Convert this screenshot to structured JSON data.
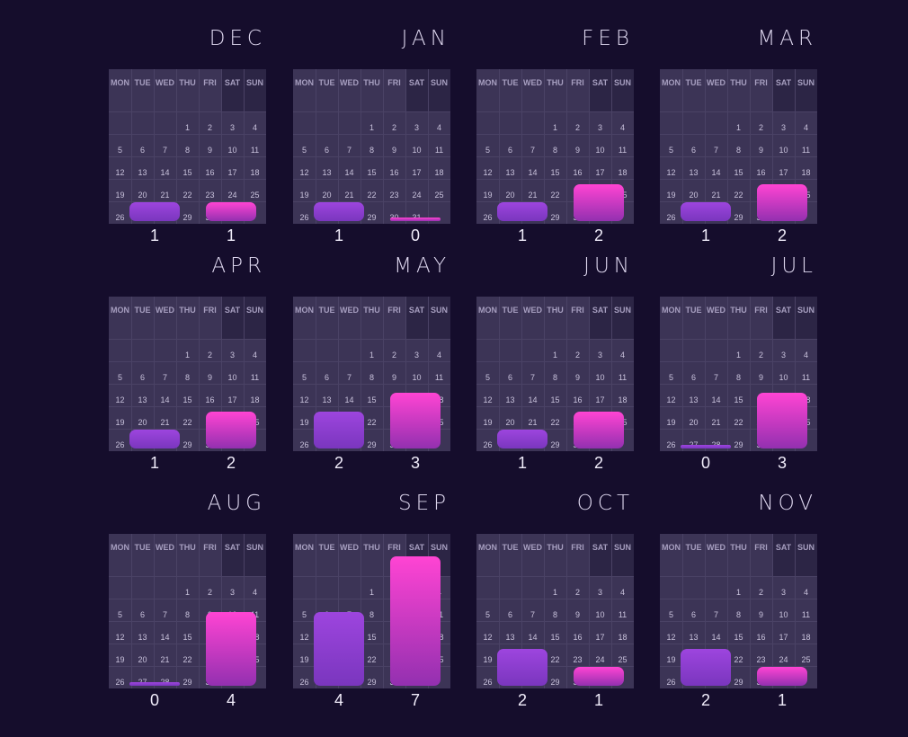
{
  "chart_data": {
    "type": "bar",
    "weekday_labels": [
      "MON",
      "TUE",
      "WED",
      "THU",
      "FRI",
      "SAT",
      "SUN"
    ],
    "series_colors": [
      "#9b44dc",
      "#ff44d3"
    ],
    "ylim": [
      0,
      7
    ],
    "months": [
      {
        "name": "DEC",
        "values": [
          1,
          1
        ],
        "value_labels": [
          "1",
          "1"
        ],
        "first_weekday": 3,
        "days": 31
      },
      {
        "name": "JAN",
        "values": [
          1,
          0
        ],
        "value_labels": [
          "1",
          "0"
        ],
        "first_weekday": 3,
        "days": 31
      },
      {
        "name": "FEB",
        "values": [
          1,
          2
        ],
        "value_labels": [
          "1",
          "2"
        ],
        "first_weekday": 3,
        "days": 31
      },
      {
        "name": "MAR",
        "values": [
          1,
          2
        ],
        "value_labels": [
          "1",
          "2"
        ],
        "first_weekday": 3,
        "days": 31
      },
      {
        "name": "APR",
        "values": [
          1,
          2
        ],
        "value_labels": [
          "1",
          "2"
        ],
        "first_weekday": 3,
        "days": 31
      },
      {
        "name": "MAY",
        "values": [
          2,
          3
        ],
        "value_labels": [
          "2",
          "3"
        ],
        "first_weekday": 3,
        "days": 31
      },
      {
        "name": "JUN",
        "values": [
          1,
          2
        ],
        "value_labels": [
          "1",
          "2"
        ],
        "first_weekday": 3,
        "days": 31
      },
      {
        "name": "JUL",
        "values": [
          0,
          3
        ],
        "value_labels": [
          "0",
          "3"
        ],
        "first_weekday": 3,
        "days": 31
      },
      {
        "name": "AUG",
        "values": [
          0,
          4
        ],
        "value_labels": [
          "0",
          "4"
        ],
        "first_weekday": 3,
        "days": 31
      },
      {
        "name": "SEP",
        "values": [
          4,
          7
        ],
        "value_labels": [
          "4",
          "7"
        ],
        "first_weekday": 3,
        "days": 31
      },
      {
        "name": "OCT",
        "values": [
          2,
          1
        ],
        "value_labels": [
          "2",
          "1"
        ],
        "first_weekday": 3,
        "days": 31
      },
      {
        "name": "NOV",
        "values": [
          2,
          1
        ],
        "value_labels": [
          "2",
          "1"
        ],
        "first_weekday": 3,
        "days": 31
      }
    ]
  }
}
